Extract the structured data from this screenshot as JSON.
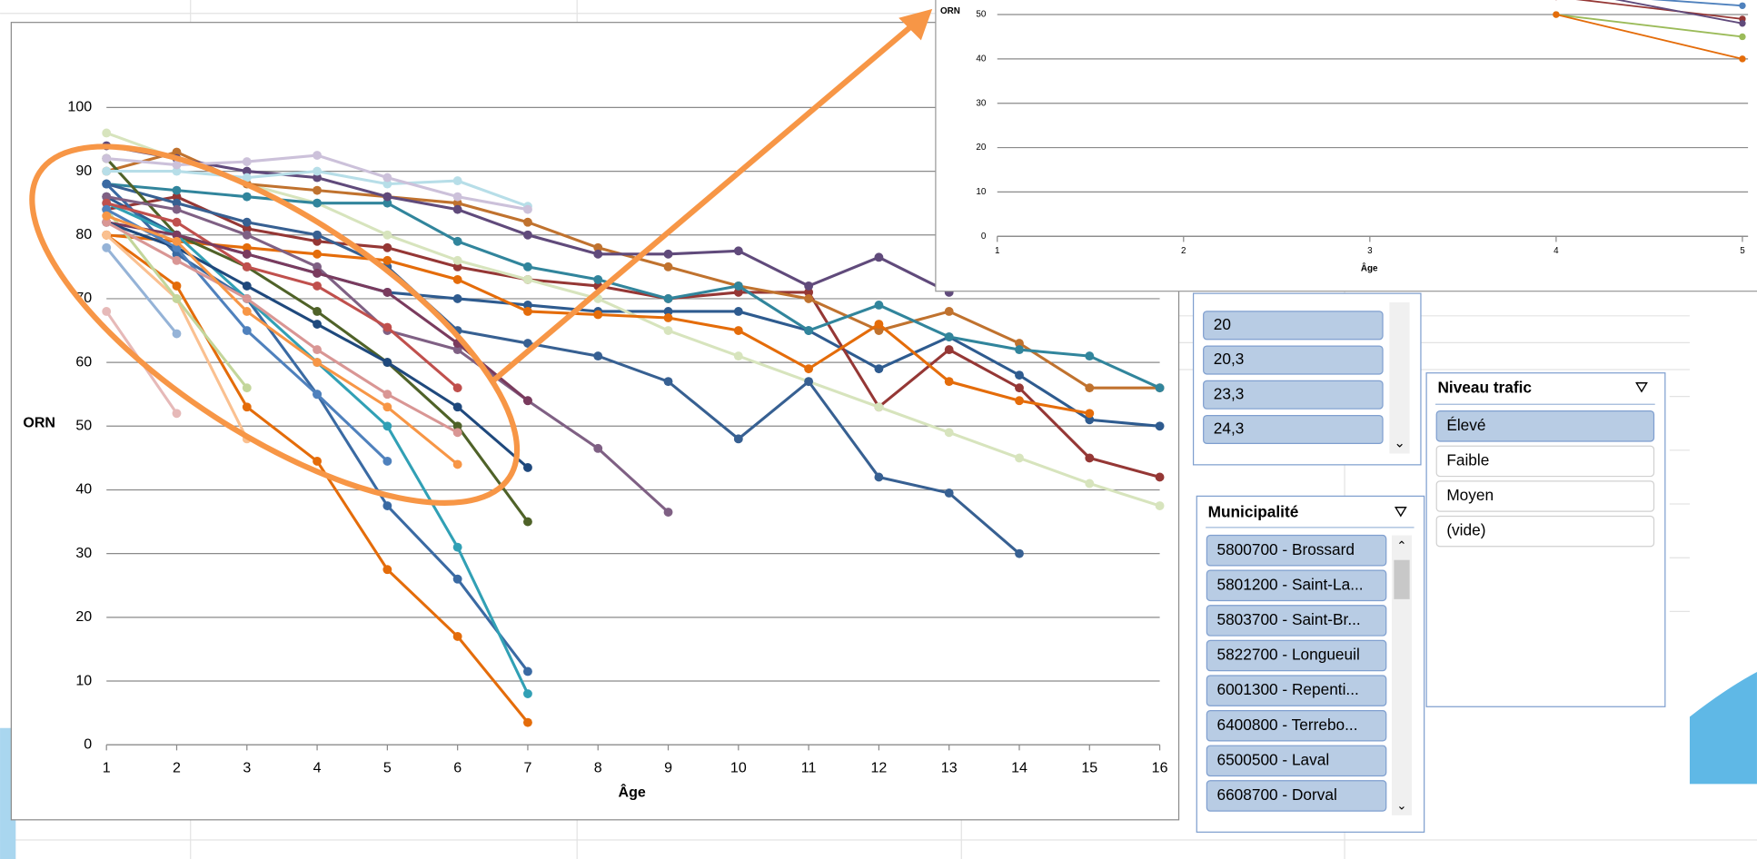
{
  "chart_data": [
    {
      "type": "line",
      "xlabel": "Âge",
      "ylabel": "ORN",
      "x": [
        1,
        2,
        3,
        4,
        5,
        6,
        7,
        8,
        9,
        10,
        11,
        12,
        13,
        14,
        15,
        16
      ],
      "xlim": [
        1,
        16
      ],
      "xticks": [
        1,
        2,
        3,
        4,
        5,
        6,
        7,
        8,
        9,
        10,
        11,
        12,
        13,
        14,
        15,
        16
      ],
      "ylim": [
        0,
        100
      ],
      "yticks": [
        0,
        10,
        20,
        30,
        40,
        50,
        60,
        70,
        80,
        90,
        100
      ],
      "grid": true,
      "series": [
        {
          "color": "#2E5B8F",
          "values": [
            86,
            80,
            77,
            74,
            71,
            70,
            69,
            68,
            68,
            68,
            65,
            59,
            64,
            58,
            51,
            50
          ]
        },
        {
          "color": "#953735",
          "values": [
            84,
            86,
            81,
            79,
            78,
            75,
            73,
            72,
            70,
            71,
            71,
            53,
            62,
            56,
            45,
            42
          ]
        },
        {
          "color": "#D7E4BD",
          "values": [
            96,
            92,
            88,
            85,
            80,
            76,
            73,
            70,
            65,
            61,
            57,
            53,
            49,
            45,
            41,
            37.5
          ]
        },
        {
          "color": "#C0722E",
          "values": [
            90,
            93,
            88,
            87,
            86,
            85,
            82,
            78,
            75,
            72,
            70,
            65,
            68,
            63,
            56,
            56
          ]
        },
        {
          "color": "#31859C",
          "values": [
            88,
            87,
            86,
            85,
            85,
            79,
            75,
            73,
            70,
            72,
            65,
            69,
            64,
            62,
            61,
            56
          ]
        },
        {
          "color": "#376092",
          "values": [
            88,
            85,
            82,
            80,
            75,
            65,
            63,
            61,
            57,
            48,
            57,
            42,
            39.5,
            30,
            null,
            null
          ]
        },
        {
          "color": "#604A7B",
          "values": [
            94,
            92,
            90,
            89,
            86,
            84,
            80,
            77,
            77,
            77.5,
            72,
            76.5,
            71,
            null,
            null,
            null
          ]
        },
        {
          "color": "#E46C0A",
          "values": [
            80,
            79,
            78,
            77,
            76,
            73,
            68,
            67.5,
            67,
            65,
            59,
            66,
            57,
            54,
            52,
            null
          ]
        },
        {
          "color": "#4F6228",
          "values": [
            92,
            80,
            75,
            68,
            60,
            50,
            35,
            null,
            null,
            null,
            null,
            null,
            null,
            null,
            null,
            null
          ]
        },
        {
          "color": "#3A6AA3",
          "values": [
            88,
            77,
            70,
            55,
            37.5,
            26,
            11.5,
            null,
            null,
            null,
            null,
            null,
            null,
            null,
            null,
            null
          ]
        },
        {
          "color": "#E46C0A",
          "values": [
            80,
            72,
            53,
            44.5,
            27.5,
            17,
            3.5,
            null,
            null,
            null,
            null,
            null,
            null,
            null,
            null,
            null
          ]
        },
        {
          "color": "#31A0B5",
          "values": [
            85,
            80,
            70,
            60,
            50,
            31,
            8,
            null,
            null,
            null,
            null,
            null,
            null,
            null,
            null,
            null
          ]
        },
        {
          "color": "#7F6084",
          "values": [
            86,
            84,
            80,
            75,
            65,
            62,
            54,
            46.5,
            36.5,
            null,
            null,
            null,
            null,
            null,
            null,
            null
          ]
        },
        {
          "color": "#E6B9B8",
          "values": [
            68,
            52,
            null,
            null,
            null,
            null,
            null,
            null,
            null,
            null,
            null,
            null,
            null,
            null,
            null,
            null
          ]
        },
        {
          "color": "#95B3D7",
          "values": [
            78,
            64.5,
            null,
            null,
            null,
            null,
            null,
            null,
            null,
            null,
            null,
            null,
            null,
            null,
            null,
            null
          ]
        },
        {
          "color": "#FAC090",
          "values": [
            80,
            70,
            48,
            null,
            null,
            null,
            null,
            null,
            null,
            null,
            null,
            null,
            null,
            null,
            null,
            null
          ]
        },
        {
          "color": "#C3D69B",
          "values": [
            84,
            70,
            56,
            null,
            null,
            null,
            null,
            null,
            null,
            null,
            null,
            null,
            null,
            null,
            null,
            null
          ]
        },
        {
          "color": "#C0504D",
          "values": [
            85,
            82,
            75,
            72,
            65.5,
            56,
            null,
            null,
            null,
            null,
            null,
            null,
            null,
            null,
            null,
            null
          ]
        },
        {
          "color": "#7A3B5E",
          "values": [
            82,
            80,
            77,
            74,
            71,
            63,
            54,
            null,
            null,
            null,
            null,
            null,
            null,
            null,
            null,
            null
          ]
        },
        {
          "color": "#B7DEE8",
          "values": [
            90,
            90,
            89,
            90,
            88,
            88.5,
            84.5,
            null,
            null,
            null,
            null,
            null,
            null,
            null,
            null,
            null
          ]
        },
        {
          "color": "#CCC1DA",
          "values": [
            92,
            91,
            91.5,
            92.5,
            89,
            86,
            84,
            null,
            null,
            null,
            null,
            null,
            null,
            null,
            null,
            null
          ]
        },
        {
          "color": "#1F497D",
          "values": [
            82,
            78,
            72,
            66,
            60,
            53,
            43.5,
            null,
            null,
            null,
            null,
            null,
            null,
            null,
            null,
            null
          ]
        },
        {
          "color": "#4F81BD",
          "values": [
            84,
            78,
            65,
            55,
            44.5,
            null,
            null,
            null,
            null,
            null,
            null,
            null,
            null,
            null,
            null,
            null
          ]
        },
        {
          "color": "#D99694",
          "values": [
            82,
            76,
            70,
            62,
            55,
            49,
            null,
            null,
            null,
            null,
            null,
            null,
            null,
            null,
            null,
            null
          ]
        },
        {
          "color": "#F79646",
          "values": [
            83,
            79,
            68,
            60,
            53,
            44,
            null,
            null,
            null,
            null,
            null,
            null,
            null,
            null,
            null,
            null
          ]
        }
      ]
    },
    {
      "type": "line",
      "xlabel": "Âge",
      "ylabel": "ORN",
      "x": [
        1,
        2,
        3,
        4,
        5
      ],
      "xlim": [
        1,
        5
      ],
      "xticks": [
        1,
        2,
        3,
        4,
        5
      ],
      "ylim": [
        0,
        50
      ],
      "yticks": [
        0,
        10,
        20,
        30,
        40,
        50
      ],
      "grid": true,
      "series": [
        {
          "color": "#4F81BD",
          "values": [
            null,
            null,
            null,
            55,
            52
          ]
        },
        {
          "color": "#953735",
          "values": [
            null,
            null,
            null,
            54,
            49
          ]
        },
        {
          "color": "#604A7B",
          "values": [
            null,
            null,
            null,
            56,
            48
          ]
        },
        {
          "color": "#9BBB59",
          "values": [
            null,
            null,
            null,
            50,
            45
          ]
        },
        {
          "color": "#E46C0A",
          "values": [
            null,
            null,
            null,
            50,
            40
          ]
        }
      ]
    }
  ],
  "slicers": [
    {
      "items": [
        "20",
        "20,3",
        "23,3",
        "24,3"
      ]
    },
    {
      "title": "Municipalité",
      "items": [
        "5800700 - Brossard",
        "5801200 - Saint-La...",
        "5803700 - Saint-Br...",
        "5822700 - Longueuil",
        "6001300 - Repenti...",
        "6400800 - Terrebo...",
        "6500500 - Laval",
        "6608700 - Dorval"
      ]
    },
    {
      "title": "Niveau trafic",
      "items": [
        "Élevé",
        "Faible",
        "Moyen",
        "(vide)"
      ]
    }
  ]
}
